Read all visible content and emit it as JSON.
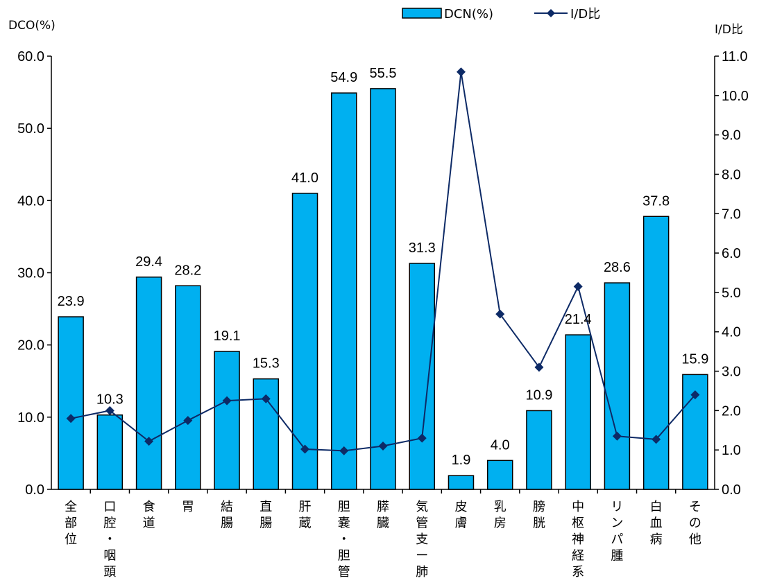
{
  "chart_data": {
    "type": "bar",
    "categories": [
      [
        "全",
        "部",
        "位"
      ],
      [
        "口",
        "腔",
        "・",
        "咽",
        "頭"
      ],
      [
        "食",
        "道"
      ],
      [
        "胃"
      ],
      [
        "結",
        "腸"
      ],
      [
        "直",
        "腸"
      ],
      [
        "肝",
        "蔵"
      ],
      [
        "胆",
        "嚢",
        "・",
        "胆",
        "管"
      ],
      [
        "膵",
        "臓"
      ],
      [
        "気",
        "管",
        "支",
        "ー",
        "肺"
      ],
      [
        "皮",
        "膚"
      ],
      [
        "乳",
        "房"
      ],
      [
        "膀",
        "胱"
      ],
      [
        "中",
        "枢",
        "神",
        "経",
        "系"
      ],
      [
        "リ",
        "ン",
        "パ",
        "腫"
      ],
      [
        "白",
        "血",
        "病"
      ],
      [
        "そ",
        "の",
        "他"
      ]
    ],
    "series": [
      {
        "name": "DCN(%)",
        "type": "bar",
        "axis": "left",
        "color": "#00B0F0",
        "values": [
          23.9,
          10.3,
          29.4,
          28.2,
          19.1,
          15.3,
          41.0,
          54.9,
          55.5,
          31.3,
          1.9,
          4.0,
          10.9,
          21.4,
          28.6,
          37.8,
          15.9
        ],
        "labels": [
          "23.9",
          "10.3",
          "29.4",
          "28.2",
          "19.1",
          "15.3",
          "41.0",
          "54.9",
          "55.5",
          "31.3",
          "1.9",
          "4.0",
          "10.9",
          "21.4",
          "28.6",
          "37.8",
          "15.9"
        ]
      },
      {
        "name": "I/D比",
        "type": "line",
        "axis": "right",
        "color": "#0D2A66",
        "marker": "diamond",
        "values": [
          1.8,
          2.0,
          1.22,
          1.75,
          2.25,
          2.3,
          1.02,
          0.98,
          1.1,
          1.3,
          10.6,
          4.45,
          3.1,
          5.15,
          1.35,
          1.27,
          2.4
        ]
      }
    ],
    "ylabel_left": "DCO(%)",
    "ylabel_right": "I/D比",
    "ylim_left": [
      0,
      60
    ],
    "ylim_right": [
      0,
      11
    ],
    "yticks_left": [
      "0.0",
      "10.0",
      "20.0",
      "30.0",
      "40.0",
      "50.0",
      "60.0"
    ],
    "yticks_right": [
      "0.0",
      "1.0",
      "2.0",
      "3.0",
      "4.0",
      "5.0",
      "6.0",
      "7.0",
      "8.0",
      "9.0",
      "10.0",
      "11.0"
    ],
    "grid": false,
    "legend_position": "top"
  }
}
